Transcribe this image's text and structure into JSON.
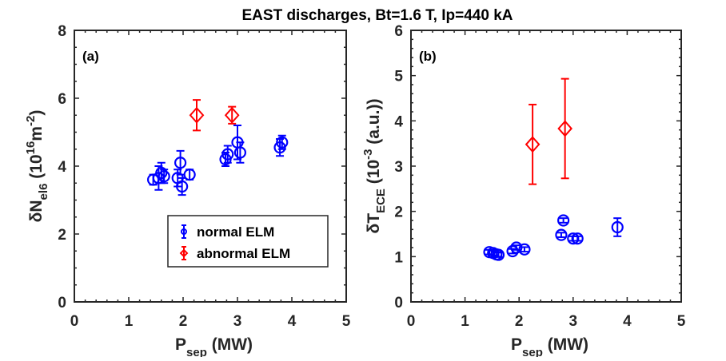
{
  "chart_data": {
    "title": "EAST discharges, Bt=1.6 T, Ip=440 kA",
    "legend": {
      "placement": "lower-right of panel (a)",
      "entries": [
        {
          "label": "normal ELM",
          "marker": "circle",
          "color": "#0000ff"
        },
        {
          "label": "abnormal ELM",
          "marker": "diamond",
          "color": "#ff0000"
        }
      ]
    },
    "panels": [
      {
        "label": "(a)",
        "type": "scatter",
        "xlabel": "P_sep (MW)",
        "xlabel_main": "P",
        "xlabel_sub": "sep",
        "xlabel_unit": "(MW)",
        "ylabel": "δN_el6 (10^16 m^-2)",
        "ylabel_main": "δN",
        "ylabel_sub": "el6",
        "ylabel_unit_pre": "(10",
        "ylabel_unit_sup": "16",
        "ylabel_unit_mid": "m",
        "ylabel_unit_sup2": "-2",
        "ylabel_unit_post": ")",
        "xlim": [
          0,
          5
        ],
        "ylim": [
          0,
          8
        ],
        "xticks": [
          "0",
          "1",
          "2",
          "3",
          "4",
          "5"
        ],
        "yticks": [
          "0",
          "2",
          "4",
          "6",
          "8"
        ],
        "series": [
          {
            "name": "normal ELM",
            "points": [
              {
                "x": 1.45,
                "y": 3.6,
                "err": 0.15
              },
              {
                "x": 1.55,
                "y": 3.65,
                "err": 0.35
              },
              {
                "x": 1.6,
                "y": 3.8,
                "err": 0.3
              },
              {
                "x": 1.65,
                "y": 3.7,
                "err": 0.2
              },
              {
                "x": 1.9,
                "y": 3.65,
                "err": 0.25
              },
              {
                "x": 1.95,
                "y": 4.1,
                "err": 0.35
              },
              {
                "x": 1.98,
                "y": 3.4,
                "err": 0.25
              },
              {
                "x": 2.12,
                "y": 3.75,
                "err": 0.15
              },
              {
                "x": 2.78,
                "y": 4.2,
                "err": 0.2
              },
              {
                "x": 2.82,
                "y": 4.35,
                "err": 0.25
              },
              {
                "x": 3.0,
                "y": 4.7,
                "err": 0.5
              },
              {
                "x": 3.05,
                "y": 4.4,
                "err": 0.3
              },
              {
                "x": 3.78,
                "y": 4.55,
                "err": 0.25
              },
              {
                "x": 3.82,
                "y": 4.7,
                "err": 0.2
              }
            ]
          },
          {
            "name": "abnormal ELM",
            "points": [
              {
                "x": 2.25,
                "y": 5.5,
                "err": 0.45
              },
              {
                "x": 2.9,
                "y": 5.5,
                "err": 0.25
              }
            ]
          }
        ]
      },
      {
        "label": "(b)",
        "type": "scatter",
        "xlabel": "P_sep (MW)",
        "xlabel_main": "P",
        "xlabel_sub": "sep",
        "xlabel_unit": "(MW)",
        "ylabel": "δT_ECE (10^-3 (a.u.))",
        "ylabel_main": "δT",
        "ylabel_sub": "ECE",
        "ylabel_unit_pre": "(10",
        "ylabel_unit_sup": "-3",
        "ylabel_unit_post": " (a.u.))",
        "xlim": [
          0,
          5
        ],
        "ylim": [
          0,
          6
        ],
        "xticks": [
          "0",
          "1",
          "2",
          "3",
          "4",
          "5"
        ],
        "yticks": [
          "0",
          "1",
          "2",
          "3",
          "4",
          "5",
          "6"
        ],
        "series": [
          {
            "name": "normal ELM",
            "points": [
              {
                "x": 1.45,
                "y": 1.1,
                "err": 0.05
              },
              {
                "x": 1.52,
                "y": 1.08,
                "err": 0.05
              },
              {
                "x": 1.58,
                "y": 1.05,
                "err": 0.05
              },
              {
                "x": 1.62,
                "y": 1.04,
                "err": 0.05
              },
              {
                "x": 1.88,
                "y": 1.12,
                "err": 0.05
              },
              {
                "x": 1.95,
                "y": 1.2,
                "err": 0.05
              },
              {
                "x": 2.1,
                "y": 1.16,
                "err": 0.05
              },
              {
                "x": 2.78,
                "y": 1.48,
                "err": 0.05
              },
              {
                "x": 2.82,
                "y": 1.8,
                "err": 0.05
              },
              {
                "x": 3.0,
                "y": 1.4,
                "err": 0.05
              },
              {
                "x": 3.08,
                "y": 1.4,
                "err": 0.05
              },
              {
                "x": 3.82,
                "y": 1.65,
                "err": 0.2
              }
            ]
          },
          {
            "name": "abnormal ELM",
            "points": [
              {
                "x": 2.25,
                "y": 3.48,
                "err": 0.88
              },
              {
                "x": 2.85,
                "y": 3.83,
                "err": 1.1
              }
            ]
          }
        ]
      }
    ]
  }
}
